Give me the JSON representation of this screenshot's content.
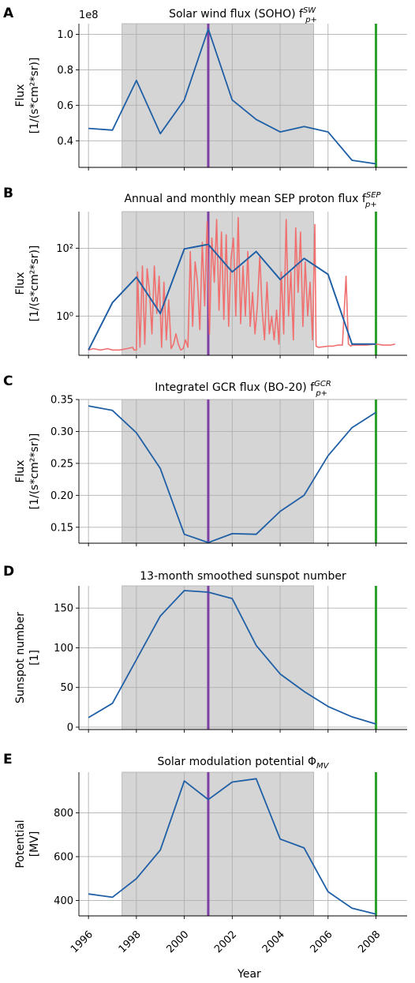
{
  "colors": {
    "series": "#1f5fa6",
    "monthly": "#f07070",
    "shade": "#d3d3d3",
    "marker_2001": "#7b3fa6",
    "marker_2008": "#2ca02c"
  },
  "x_axis": {
    "label": "Year",
    "ticks": [
      1996,
      1998,
      2000,
      2002,
      2004,
      2006,
      2008
    ],
    "tick_labels": [
      "1996",
      "1998",
      "2000",
      "2002",
      "2004",
      "2006",
      "2008"
    ],
    "xlim": [
      1995.6,
      2009.3
    ]
  },
  "chart_data": [
    {
      "id": "A",
      "letter": "A",
      "type": "line",
      "title": "Solar wind flux (SOHO) f",
      "title_sup": "SW",
      "title_sub": "p+",
      "ylabel": [
        "Flux",
        "[1/(s*cm²*sr)]"
      ],
      "offset_label": "1e8",
      "scale": "linear",
      "ylim": [
        0.25,
        1.06
      ],
      "yticks": [
        0.4,
        0.6,
        0.8,
        1.0
      ],
      "ytick_labels": [
        "0.4",
        "0.6",
        "0.8",
        "1.0"
      ],
      "shade": [
        1997.4,
        2005.4
      ],
      "vlines": [
        2001,
        2008
      ],
      "grid": true,
      "series": [
        {
          "x": [
            1996,
            1997,
            1998,
            1999,
            2000,
            2001,
            2002,
            2003,
            2004,
            2005,
            2006,
            2007,
            2008
          ],
          "values": [
            0.47,
            0.46,
            0.74,
            0.44,
            0.63,
            1.03,
            0.63,
            0.52,
            0.45,
            0.48,
            0.45,
            0.29,
            0.27
          ]
        }
      ]
    },
    {
      "id": "B",
      "letter": "B",
      "type": "line",
      "title": "Annual and monthly mean SEP proton flux f",
      "title_sup": "SEP",
      "title_sub": "p+",
      "ylabel": [
        "Flux",
        "[1/(s*cm²*sr)]"
      ],
      "scale": "log",
      "ylim": [
        0.07,
        1200
      ],
      "yticks": [
        1,
        100
      ],
      "ytick_labels": [
        "10⁰",
        "10²"
      ],
      "shade": [
        1997.4,
        2005.4
      ],
      "vlines": [
        2001,
        2008
      ],
      "grid": true,
      "series": [
        {
          "x": [
            1996,
            1997,
            1998,
            1999,
            2000,
            2001,
            2002,
            2003,
            2004,
            2005,
            2006,
            2007,
            2008
          ],
          "values": [
            0.1,
            2.5,
            14,
            1.2,
            95,
            130,
            20,
            80,
            12,
            50,
            17,
            0.15,
            0.15
          ]
        },
        {
          "x": [
            1996.0,
            1996.2,
            1996.5,
            1996.8,
            1997.0,
            1997.3,
            1997.6,
            1997.85,
            1997.9,
            1998.0,
            1998.05,
            1998.15,
            1998.25,
            1998.35,
            1998.45,
            1998.55,
            1998.65,
            1998.75,
            1998.85,
            1998.95,
            1999.05,
            1999.15,
            1999.25,
            1999.35,
            1999.45,
            1999.55,
            1999.65,
            1999.75,
            1999.85,
            1999.95,
            2000.05,
            2000.15,
            2000.25,
            2000.35,
            2000.45,
            2000.55,
            2000.65,
            2000.75,
            2000.85,
            2000.95,
            2001.05,
            2001.15,
            2001.25,
            2001.35,
            2001.45,
            2001.55,
            2001.65,
            2001.75,
            2001.85,
            2001.95,
            2002.05,
            2002.15,
            2002.25,
            2002.35,
            2002.45,
            2002.55,
            2002.65,
            2002.75,
            2002.85,
            2002.95,
            2003.05,
            2003.15,
            2003.25,
            2003.35,
            2003.45,
            2003.55,
            2003.65,
            2003.75,
            2003.85,
            2003.95,
            2004.05,
            2004.15,
            2004.25,
            2004.35,
            2004.45,
            2004.55,
            2004.65,
            2004.75,
            2004.85,
            2004.95,
            2005.05,
            2005.15,
            2005.25,
            2005.35,
            2005.45,
            2005.5,
            2005.6,
            2006.0,
            2006.2,
            2006.4,
            2006.6,
            2006.75,
            2006.85,
            2006.95,
            2007.0,
            2007.3,
            2007.6,
            2008.0,
            2008.3,
            2008.6,
            2008.8
          ],
          "values": [
            0.1,
            0.11,
            0.1,
            0.11,
            0.1,
            0.1,
            0.11,
            0.12,
            0.1,
            0.1,
            20,
            0.12,
            30,
            0.15,
            25,
            5,
            0.3,
            30,
            1.2,
            15,
            0.12,
            10,
            0.2,
            3,
            0.11,
            0.15,
            0.3,
            0.15,
            0.1,
            0.11,
            0.2,
            0.12,
            80,
            0.5,
            40,
            10,
            0.4,
            150,
            2,
            600,
            0.3,
            200,
            10,
            700,
            1.5,
            300,
            0.8,
            250,
            0.5,
            50,
            200,
            1,
            800,
            0.6,
            30,
            1,
            80,
            0.5,
            5,
            0.3,
            2,
            60,
            1.5,
            0.2,
            10,
            0.3,
            1,
            0.2,
            1.5,
            0.15,
            20,
            0.3,
            700,
            1,
            20,
            0.2,
            400,
            5,
            300,
            0.5,
            40,
            1,
            10,
            0.2,
            500,
            0.13,
            0.12,
            0.13,
            0.13,
            0.14,
            0.14,
            15,
            0.15,
            0.13,
            0.14,
            0.14,
            0.14,
            0.15,
            0.14,
            0.14,
            0.15
          ]
        }
      ]
    },
    {
      "id": "C",
      "letter": "C",
      "type": "line",
      "title": "Integratel GCR flux (BO-20) f",
      "title_sup": "GCR",
      "title_sub": "p+",
      "ylabel": [
        "Flux",
        "[1/(s*cm²*sr)]"
      ],
      "scale": "linear",
      "ylim": [
        0.125,
        0.35
      ],
      "yticks": [
        0.15,
        0.2,
        0.25,
        0.3,
        0.35
      ],
      "ytick_labels": [
        "0.15",
        "0.20",
        "0.25",
        "0.30",
        "0.35"
      ],
      "shade": [
        1997.4,
        2005.4
      ],
      "vlines": [
        2001,
        2008
      ],
      "grid": true,
      "series": [
        {
          "x": [
            1996,
            1997,
            1998,
            1999,
            2000,
            2001,
            2002,
            2003,
            2004,
            2005,
            2006,
            2007,
            2008
          ],
          "values": [
            0.34,
            0.333,
            0.298,
            0.242,
            0.139,
            0.126,
            0.14,
            0.139,
            0.175,
            0.2,
            0.262,
            0.306,
            0.33
          ]
        }
      ]
    },
    {
      "id": "D",
      "letter": "D",
      "type": "line",
      "title": "13-month smoothed sunspot number",
      "title_sup": "",
      "title_sub": "",
      "ylabel": [
        "Sunspot number",
        "[1]"
      ],
      "scale": "linear",
      "ylim": [
        -3,
        178
      ],
      "yticks": [
        0,
        50,
        100,
        150
      ],
      "ytick_labels": [
        "0",
        "50",
        "100",
        "150"
      ],
      "shade": [
        1997.4,
        2005.4
      ],
      "vlines": [
        2001,
        2008
      ],
      "grid": true,
      "series": [
        {
          "x": [
            1996,
            1997,
            1998,
            1999,
            2000,
            2001,
            2002,
            2003,
            2004,
            2005,
            2006,
            2007,
            2008
          ],
          "values": [
            12,
            30,
            85,
            140,
            172,
            170,
            162,
            103,
            67,
            45,
            26,
            13,
            4
          ]
        }
      ]
    },
    {
      "id": "E",
      "letter": "E",
      "type": "line",
      "title": "Solar modulation potential Φ",
      "title_sup": "",
      "title_sub": "MV",
      "ylabel": [
        "Potential",
        "[MV]"
      ],
      "scale": "linear",
      "ylim": [
        330,
        985
      ],
      "yticks": [
        400,
        600,
        800
      ],
      "ytick_labels": [
        "400",
        "600",
        "800"
      ],
      "shade": [
        1997.4,
        2005.4
      ],
      "vlines": [
        2001,
        2008
      ],
      "grid": true,
      "series": [
        {
          "x": [
            1996,
            1997,
            1998,
            1999,
            2000,
            2001,
            2002,
            2003,
            2004,
            2005,
            2006,
            2007,
            2008
          ],
          "values": [
            430,
            415,
            500,
            630,
            945,
            860,
            940,
            955,
            680,
            640,
            440,
            365,
            338
          ]
        }
      ]
    }
  ]
}
